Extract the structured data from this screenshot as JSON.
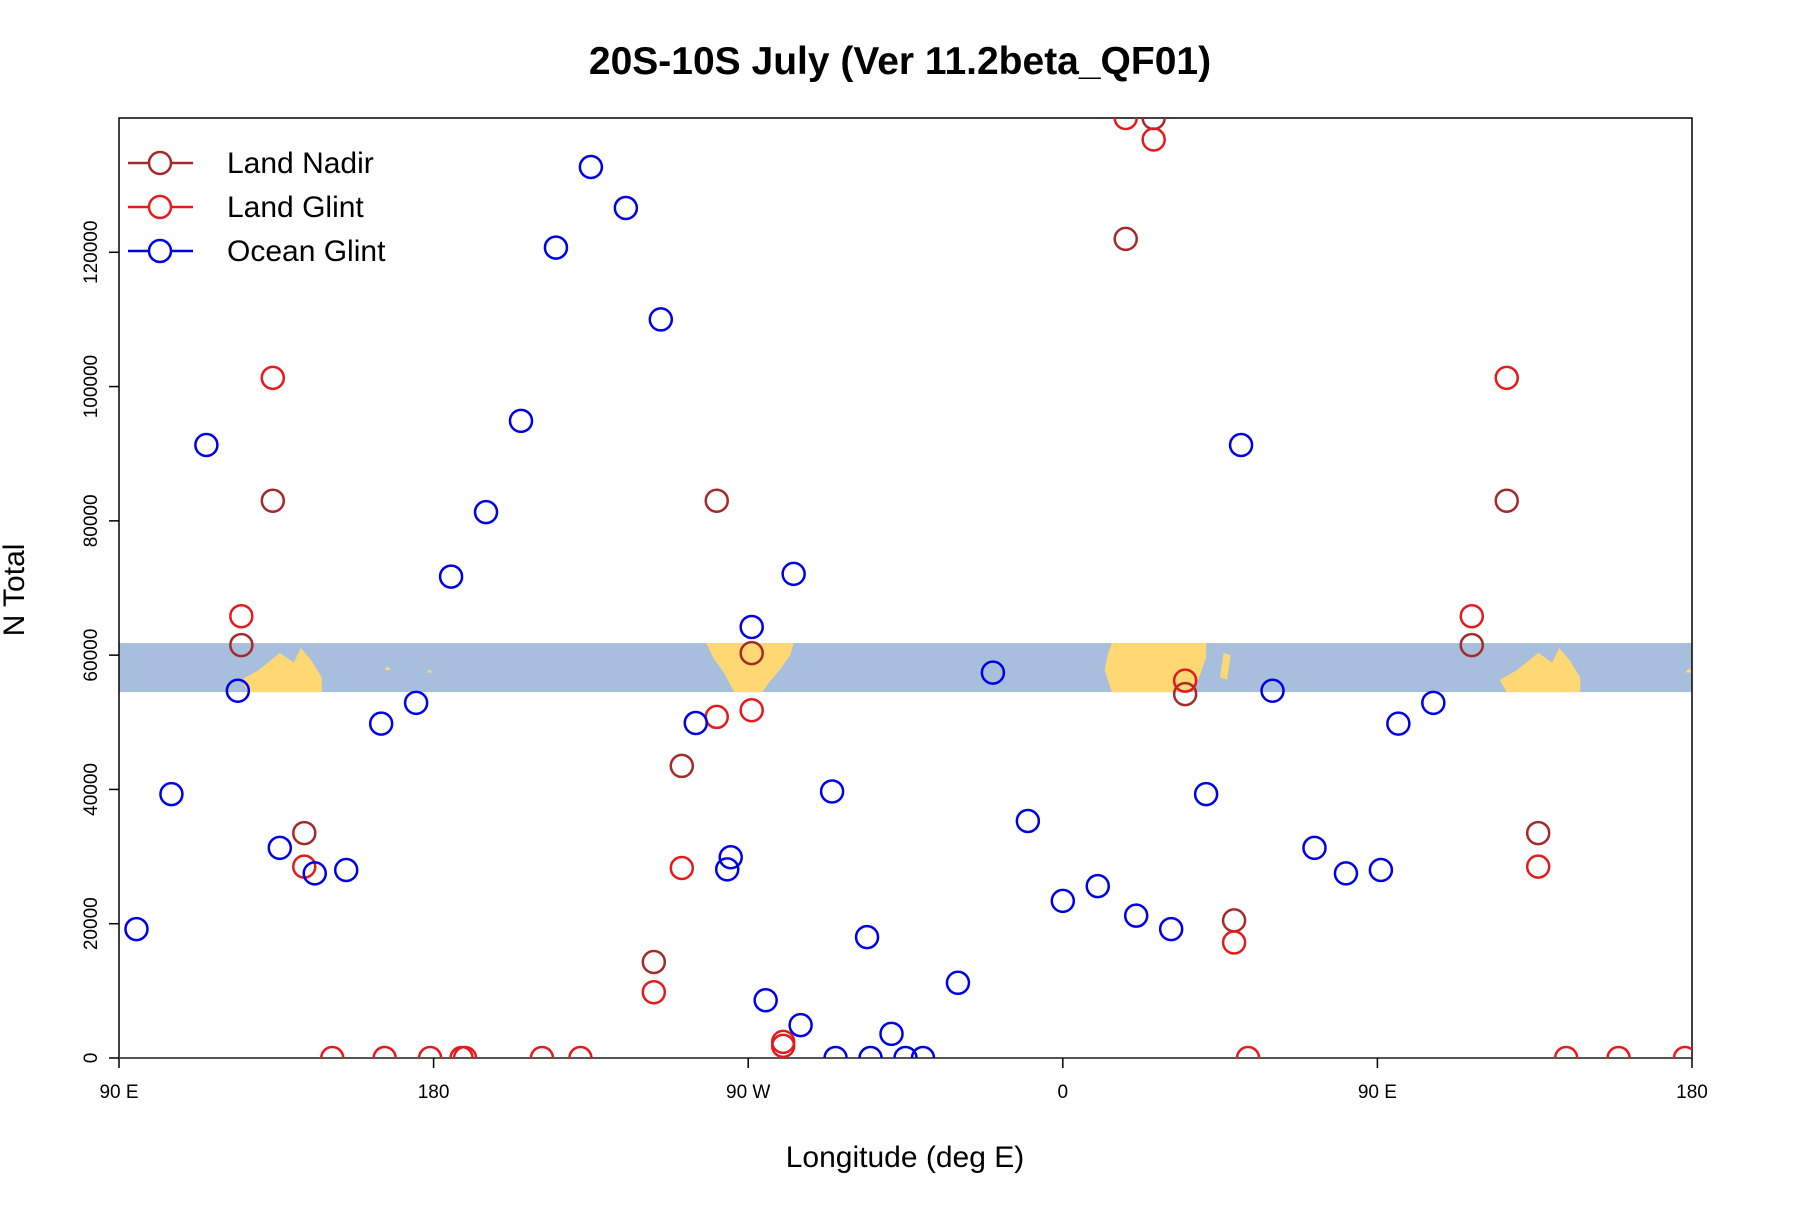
{
  "chart_data": {
    "type": "scatter",
    "title": "20S-10S July (Ver 11.2beta_QF01)",
    "xlabel": "Longitude (deg E)",
    "ylabel": "N Total",
    "xlim": [
      90,
      540
    ],
    "ylim": [
      0,
      140000
    ],
    "x_ticks": [
      {
        "value": 90,
        "label": "90 E"
      },
      {
        "value": 180,
        "label": "180"
      },
      {
        "value": 270,
        "label": "90 W"
      },
      {
        "value": 360,
        "label": "0"
      },
      {
        "value": 450,
        "label": "90 E"
      },
      {
        "value": 540,
        "label": "180"
      }
    ],
    "y_ticks": [
      {
        "value": 0,
        "label": "0"
      },
      {
        "value": 20000,
        "label": "20000"
      },
      {
        "value": 40000,
        "label": "40000"
      },
      {
        "value": 60000,
        "label": "60000"
      },
      {
        "value": 80000,
        "label": "80000"
      },
      {
        "value": 100000,
        "label": "100000"
      },
      {
        "value": 120000,
        "label": "120000"
      }
    ],
    "legend_position": "top-left",
    "map_band": {
      "y_range": [
        54500,
        61800
      ],
      "ocean_color": "#a7bedc",
      "land_color": "#ffd874"
    },
    "series": [
      {
        "name": "Land Nadir",
        "color": "#a52a2a",
        "points": [
          [
            134,
            83000
          ],
          [
            125,
            61500
          ],
          [
            143,
            33500
          ],
          [
            261,
            83000
          ],
          [
            271,
            60300
          ],
          [
            251,
            43500
          ],
          [
            243,
            14300
          ],
          [
            395,
            54200
          ],
          [
            378,
            122000
          ],
          [
            386,
            140000
          ],
          [
            409,
            20500
          ],
          [
            487,
            83000
          ],
          [
            477,
            61500
          ],
          [
            496,
            33500
          ]
        ]
      },
      {
        "name": "Land Glint",
        "color": "#e41a1c",
        "points": [
          [
            134,
            101300
          ],
          [
            125,
            65800
          ],
          [
            143,
            28500
          ],
          [
            151,
            0
          ],
          [
            166,
            0
          ],
          [
            179,
            0
          ],
          [
            188,
            0
          ],
          [
            189,
            0
          ],
          [
            211,
            0
          ],
          [
            222,
            0
          ],
          [
            261,
            50800
          ],
          [
            271,
            51800
          ],
          [
            251,
            28300
          ],
          [
            243,
            9800
          ],
          [
            280,
            2400
          ],
          [
            280,
            1800
          ],
          [
            395,
            56200
          ],
          [
            378,
            140000
          ],
          [
            386,
            136800
          ],
          [
            409,
            17200
          ],
          [
            413,
            0
          ],
          [
            487,
            101300
          ],
          [
            477,
            65800
          ],
          [
            496,
            28500
          ],
          [
            504,
            0
          ],
          [
            519,
            0
          ],
          [
            538,
            0
          ]
        ]
      },
      {
        "name": "Ocean Glint",
        "color": "#0000e6",
        "points": [
          [
            95,
            19200
          ],
          [
            105,
            39300
          ],
          [
            115,
            91300
          ],
          [
            124,
            54700
          ],
          [
            136,
            31300
          ],
          [
            146,
            27500
          ],
          [
            155,
            28000
          ],
          [
            165,
            49800
          ],
          [
            175,
            52900
          ],
          [
            185,
            71700
          ],
          [
            195,
            81300
          ],
          [
            205,
            94900
          ],
          [
            215,
            120700
          ],
          [
            225,
            132700
          ],
          [
            235,
            126600
          ],
          [
            245,
            110000
          ],
          [
            255,
            49900
          ],
          [
            265,
            29900
          ],
          [
            275,
            8600
          ],
          [
            285,
            4900
          ],
          [
            295,
            0
          ],
          [
            305,
            0
          ],
          [
            315,
            0
          ],
          [
            264,
            28100
          ],
          [
            271,
            64200
          ],
          [
            283,
            72100
          ],
          [
            294,
            39700
          ],
          [
            304,
            18000
          ],
          [
            311,
            3600
          ],
          [
            320,
            0
          ],
          [
            330,
            11200
          ],
          [
            340,
            57400
          ],
          [
            350,
            35300
          ],
          [
            360,
            23400
          ],
          [
            370,
            25600
          ],
          [
            381,
            21200
          ],
          [
            391,
            19200
          ],
          [
            401,
            39300
          ],
          [
            411,
            91300
          ],
          [
            420,
            54700
          ],
          [
            432,
            31300
          ],
          [
            441,
            27500
          ],
          [
            451,
            28000
          ],
          [
            456,
            49800
          ],
          [
            466,
            52900
          ]
        ]
      }
    ]
  }
}
